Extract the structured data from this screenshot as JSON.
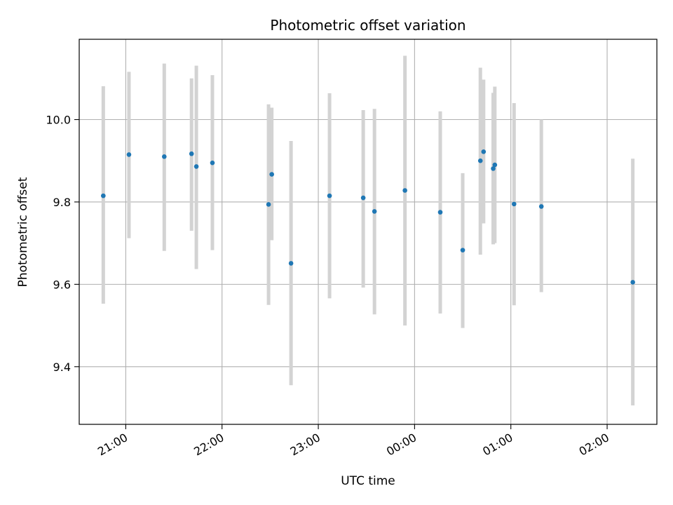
{
  "chart_data": {
    "type": "scatter",
    "title": "Photometric offset variation",
    "xlabel": "UTC time",
    "ylabel": "Photometric offset",
    "xlim": [
      "20:31",
      "02:31"
    ],
    "ylim": [
      9.26,
      10.195
    ],
    "x_ticks": [
      "21:00",
      "22:00",
      "23:00",
      "00:00",
      "01:00",
      "02:00"
    ],
    "y_ticks": [
      9.4,
      9.6,
      9.8,
      10.0
    ],
    "y_tick_labels": [
      "9.4",
      "9.6",
      "9.8",
      "10.0"
    ],
    "grid": true,
    "point_color": "#1f77b4",
    "errorbar_color": "#d3d3d3",
    "series": [
      {
        "points": [
          {
            "x": "20:46",
            "y": 9.815,
            "ylow": 9.553,
            "yhigh": 10.081
          },
          {
            "x": "21:02",
            "y": 9.915,
            "ylow": 9.712,
            "yhigh": 10.116
          },
          {
            "x": "21:24",
            "y": 9.91,
            "ylow": 9.681,
            "yhigh": 10.136
          },
          {
            "x": "21:41",
            "y": 9.917,
            "ylow": 9.73,
            "yhigh": 10.1
          },
          {
            "x": "21:44",
            "y": 9.886,
            "ylow": 9.637,
            "yhigh": 10.131
          },
          {
            "x": "21:54",
            "y": 9.895,
            "ylow": 9.683,
            "yhigh": 10.108
          },
          {
            "x": "22:29",
            "y": 9.794,
            "ylow": 9.55,
            "yhigh": 10.037
          },
          {
            "x": "22:31",
            "y": 9.867,
            "ylow": 9.707,
            "yhigh": 10.029
          },
          {
            "x": "22:43",
            "y": 9.651,
            "ylow": 9.355,
            "yhigh": 9.948
          },
          {
            "x": "23:07",
            "y": 9.815,
            "ylow": 9.566,
            "yhigh": 10.064
          },
          {
            "x": "23:28",
            "y": 9.81,
            "ylow": 9.592,
            "yhigh": 10.023
          },
          {
            "x": "23:35",
            "y": 9.777,
            "ylow": 9.527,
            "yhigh": 10.026
          },
          {
            "x": "23:54",
            "y": 9.828,
            "ylow": 9.5,
            "yhigh": 10.155
          },
          {
            "x": "00:16",
            "y": 9.775,
            "ylow": 9.529,
            "yhigh": 10.02
          },
          {
            "x": "00:30",
            "y": 9.683,
            "ylow": 9.494,
            "yhigh": 9.87
          },
          {
            "x": "00:41",
            "y": 9.9,
            "ylow": 9.672,
            "yhigh": 10.126
          },
          {
            "x": "00:43",
            "y": 9.922,
            "ylow": 9.748,
            "yhigh": 10.097
          },
          {
            "x": "00:49",
            "y": 9.881,
            "ylow": 9.697,
            "yhigh": 10.065
          },
          {
            "x": "00:50",
            "y": 9.89,
            "ylow": 9.7,
            "yhigh": 10.08
          },
          {
            "x": "01:02",
            "y": 9.795,
            "ylow": 9.549,
            "yhigh": 10.04
          },
          {
            "x": "01:19",
            "y": 9.789,
            "ylow": 9.581,
            "yhigh": 10.0
          },
          {
            "x": "02:16",
            "y": 9.605,
            "ylow": 9.306,
            "yhigh": 9.905
          }
        ]
      }
    ]
  }
}
